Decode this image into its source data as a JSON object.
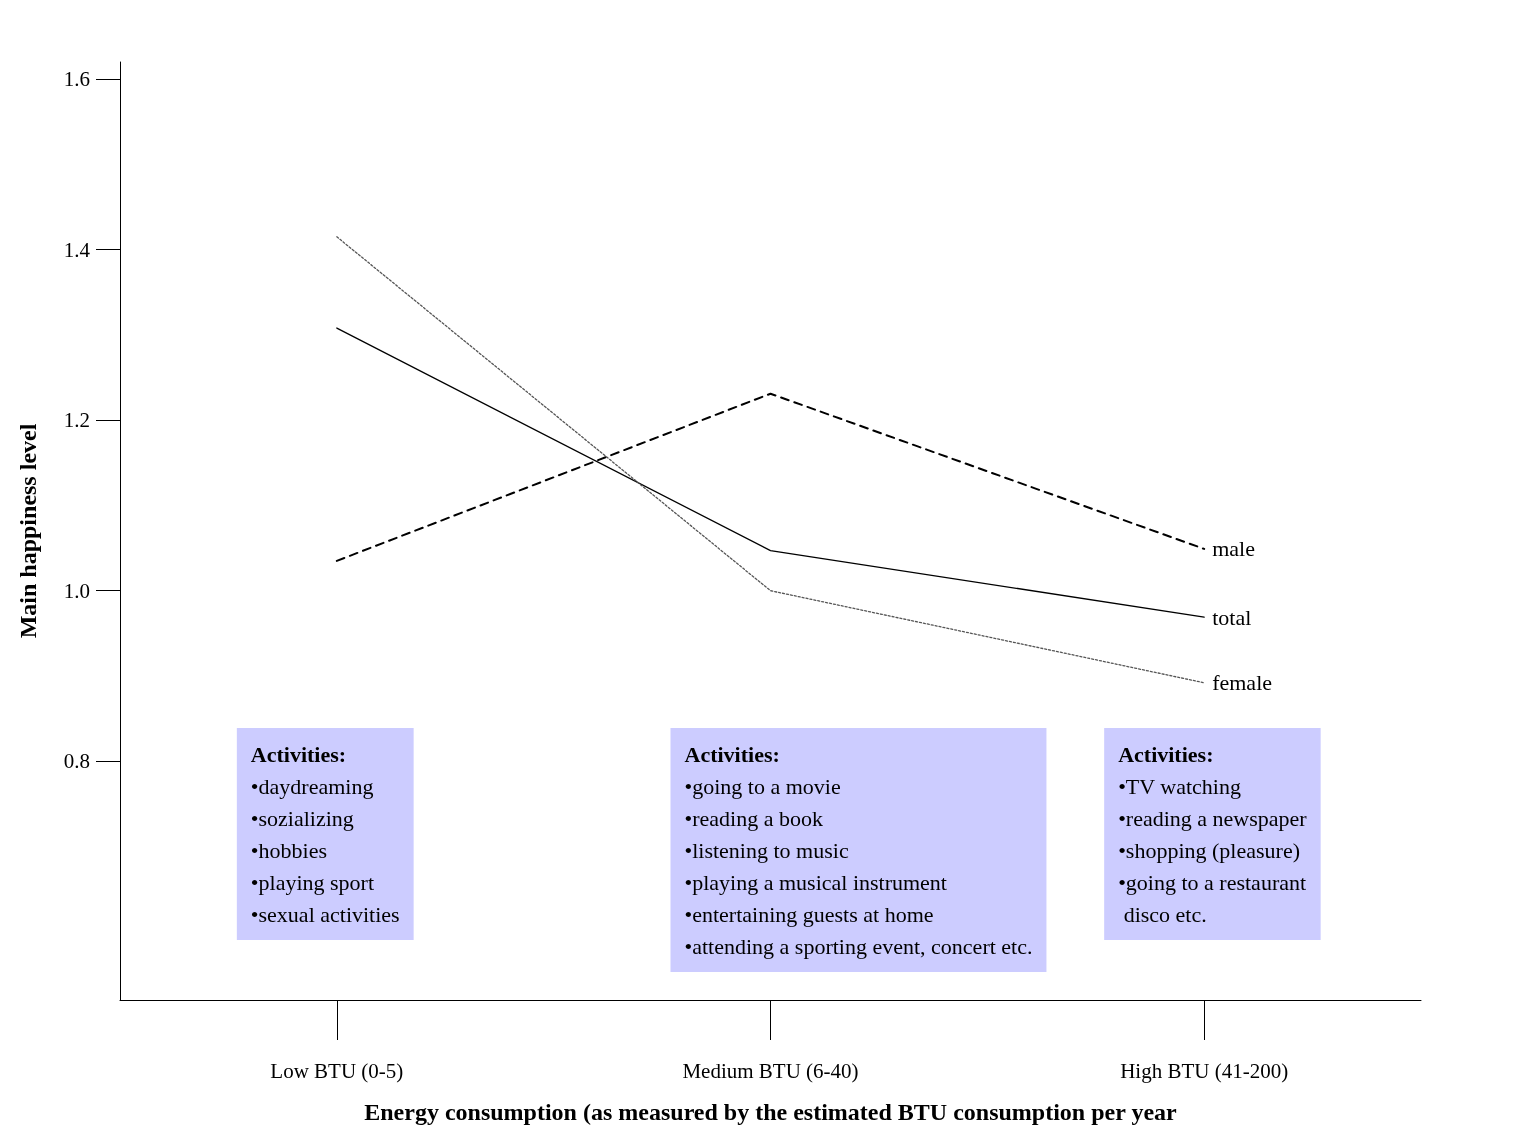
{
  "chart_data": {
    "type": "line",
    "xlabel": "Energy consumption (as measured by the estimated BTU consumption per year",
    "ylabel": "Main happiness level",
    "categories": [
      "Low BTU (0-5)",
      "Medium BTU (6-40)",
      "High BTU (41-200)"
    ],
    "series": [
      {
        "name": "male",
        "color": "#000000",
        "line_style": "dashed",
        "values": [
          1.035,
          1.231,
          1.049
        ]
      },
      {
        "name": "total",
        "color": "#000000",
        "line_style": "solid",
        "values": [
          1.308,
          1.047,
          0.969
        ]
      },
      {
        "name": "female",
        "color": "#555555",
        "line_style": "dotted",
        "values": [
          1.415,
          1.0,
          0.892
        ]
      }
    ],
    "ylim": [
      0.52,
      1.62
    ],
    "yticks": [
      {
        "value": 0.8,
        "label": "0.8"
      },
      {
        "value": 1.0,
        "label": "1.0"
      },
      {
        "value": 1.2,
        "label": "1.2"
      },
      {
        "value": 1.4,
        "label": "1.4"
      },
      {
        "value": 1.6,
        "label": "1.6"
      }
    ],
    "grid": false,
    "legend": false,
    "marker": "none",
    "annotations": [
      "Activities:\n•daydreaming\n•sozializing\n•hobbies\n•playing sport\n•sexual activities",
      "Activities:\n•going to a movie\n•reading a book\n•listening to music\n•playing a musical instrument\n•entertaining guests at home\n•attending a sporting event, concert etc.",
      "Activities:\n•TV watching\n•reading a newspaper\n•shopping (pleasure)\n•going to a restaurant\n disco etc."
    ]
  }
}
